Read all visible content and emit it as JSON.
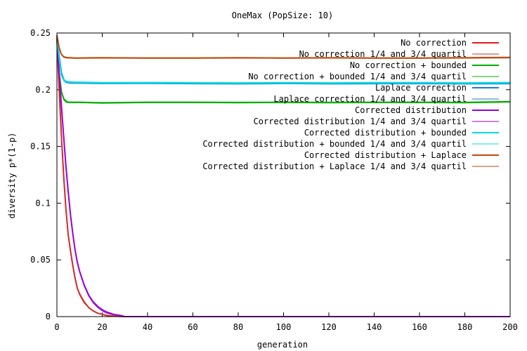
{
  "chart_data": {
    "type": "line",
    "title": "OneMax (PopSize: 10)",
    "xlabel": "generation",
    "ylabel": "diversity p*(1-p)",
    "xlim": [
      0,
      200
    ],
    "ylim": [
      0,
      0.25
    ],
    "xticks": [
      0,
      20,
      40,
      60,
      80,
      100,
      120,
      140,
      160,
      180,
      200
    ],
    "yticks": [
      0,
      0.05,
      0.1,
      0.15,
      0.2,
      0.25
    ],
    "grid": false,
    "legend_position": "top-right",
    "series": [
      {
        "name": "No correction",
        "color": "#e41a1c",
        "width": 2,
        "x": [
          0,
          1,
          2,
          3,
          4,
          5,
          6,
          7,
          8,
          9,
          10,
          12,
          14,
          16,
          18,
          20,
          22,
          25,
          28,
          30,
          40,
          60,
          100,
          150,
          200
        ],
        "y": [
          0.245,
          0.2,
          0.158,
          0.123,
          0.094,
          0.072,
          0.058,
          0.045,
          0.034,
          0.025,
          0.02,
          0.013,
          0.008,
          0.005,
          0.003,
          0.002,
          0.001,
          0.0005,
          0.0002,
          0,
          0,
          0,
          0,
          0,
          0
        ]
      },
      {
        "name": "No correction 1/4 and 3/4 quartil",
        "color": "#c0392b",
        "width": 1,
        "x": [
          0,
          1,
          2,
          3,
          4,
          5,
          6,
          7,
          8,
          9,
          10,
          12,
          14,
          16,
          18,
          20,
          22,
          25,
          28,
          30,
          40,
          60,
          100,
          150,
          200
        ],
        "y": [
          0.244,
          0.198,
          0.156,
          0.121,
          0.093,
          0.071,
          0.057,
          0.044,
          0.033,
          0.025,
          0.019,
          0.012,
          0.008,
          0.005,
          0.003,
          0.002,
          0.001,
          0.0005,
          0.0002,
          0,
          0,
          0,
          0,
          0,
          0
        ]
      },
      {
        "name": "No correction + bounded",
        "color": "#00b000",
        "width": 2,
        "x": [
          0,
          1,
          2,
          3,
          4,
          5,
          6,
          8,
          10,
          20,
          40,
          60,
          80,
          100,
          120,
          140,
          160,
          180,
          200
        ],
        "y": [
          0.245,
          0.215,
          0.198,
          0.192,
          0.19,
          0.189,
          0.189,
          0.189,
          0.189,
          0.1885,
          0.189,
          0.189,
          0.1888,
          0.189,
          0.1888,
          0.189,
          0.189,
          0.1888,
          0.1895
        ]
      },
      {
        "name": "No correction + bounded 1/4 and 3/4 quartil",
        "color": "#00b000",
        "width": 1,
        "x": [
          0,
          1,
          2,
          3,
          4,
          5,
          6,
          8,
          10,
          20,
          40,
          60,
          80,
          100,
          120,
          140,
          160,
          180,
          200
        ],
        "y": [
          0.244,
          0.213,
          0.197,
          0.191,
          0.189,
          0.1885,
          0.1885,
          0.1885,
          0.1885,
          0.188,
          0.1885,
          0.1885,
          0.1883,
          0.1885,
          0.1883,
          0.1885,
          0.1885,
          0.1883,
          0.189
        ]
      },
      {
        "name": "Laplace correction",
        "color": "#1f78d4",
        "width": 2,
        "x": [
          0,
          1,
          2,
          3,
          4,
          5,
          6,
          8,
          10,
          20,
          40,
          60,
          80,
          100,
          120,
          140,
          160,
          180,
          200
        ],
        "y": [
          0.247,
          0.23,
          0.215,
          0.209,
          0.207,
          0.2065,
          0.2063,
          0.2062,
          0.2062,
          0.2058,
          0.206,
          0.2058,
          0.2055,
          0.2058,
          0.2056,
          0.2058,
          0.2058,
          0.2055,
          0.2058
        ]
      },
      {
        "name": "Laplace correction 1/4 and 3/4 quartil",
        "color": "#1f78d4",
        "width": 1,
        "x": [
          0,
          1,
          2,
          3,
          4,
          5,
          6,
          8,
          10,
          20,
          40,
          60,
          80,
          100,
          120,
          140,
          160,
          180,
          200
        ],
        "y": [
          0.246,
          0.229,
          0.214,
          0.208,
          0.2062,
          0.2058,
          0.2056,
          0.2055,
          0.2055,
          0.2052,
          0.2053,
          0.2051,
          0.2049,
          0.2052,
          0.2049,
          0.2051,
          0.2051,
          0.2049,
          0.2051
        ]
      },
      {
        "name": "Corrected distribution",
        "color": "#9b00d3",
        "width": 2,
        "x": [
          0,
          1,
          2,
          3,
          4,
          5,
          6,
          7,
          8,
          9,
          10,
          12,
          14,
          16,
          18,
          20,
          22,
          25,
          28,
          30,
          40,
          60,
          100,
          150,
          200
        ],
        "y": [
          0.246,
          0.215,
          0.185,
          0.158,
          0.132,
          0.11,
          0.09,
          0.073,
          0.059,
          0.048,
          0.04,
          0.028,
          0.019,
          0.013,
          0.009,
          0.006,
          0.004,
          0.002,
          0.001,
          0,
          0,
          0,
          0,
          0,
          0
        ]
      },
      {
        "name": "Corrected distribution 1/4 and 3/4 quartil",
        "color": "#9b00d3",
        "width": 1,
        "x": [
          0,
          1,
          2,
          3,
          4,
          5,
          6,
          7,
          8,
          9,
          10,
          12,
          14,
          16,
          18,
          20,
          22,
          25,
          28,
          30,
          40,
          60,
          100,
          150,
          200
        ],
        "y": [
          0.245,
          0.213,
          0.183,
          0.156,
          0.13,
          0.108,
          0.089,
          0.072,
          0.058,
          0.047,
          0.039,
          0.027,
          0.018,
          0.012,
          0.008,
          0.005,
          0.003,
          0.0015,
          0.0008,
          0,
          0,
          0,
          0,
          0,
          0
        ]
      },
      {
        "name": "Corrected distribution + bounded",
        "color": "#00d8e8",
        "width": 2,
        "x": [
          0,
          1,
          2,
          3,
          4,
          5,
          6,
          8,
          10,
          20,
          40,
          60,
          80,
          100,
          120,
          140,
          160,
          180,
          200
        ],
        "y": [
          0.247,
          0.228,
          0.213,
          0.2085,
          0.2075,
          0.207,
          0.2068,
          0.2066,
          0.2066,
          0.2062,
          0.2063,
          0.2061,
          0.206,
          0.2062,
          0.206,
          0.2062,
          0.2062,
          0.206,
          0.2063
        ]
      },
      {
        "name": "Corrected distribution + bounded 1/4 and 3/4 quartil",
        "color": "#00d8e8",
        "width": 1,
        "x": [
          0,
          1,
          2,
          3,
          4,
          5,
          6,
          8,
          10,
          20,
          40,
          60,
          80,
          100,
          120,
          140,
          160,
          180,
          200
        ],
        "y": [
          0.2465,
          0.227,
          0.2122,
          0.2078,
          0.2068,
          0.2064,
          0.2062,
          0.206,
          0.206,
          0.2056,
          0.2057,
          0.2055,
          0.2054,
          0.2056,
          0.2054,
          0.2056,
          0.2056,
          0.2054,
          0.2057
        ]
      },
      {
        "name": "Corrected distribution + Laplace",
        "color": "#c04a0a",
        "width": 2,
        "x": [
          0,
          1,
          2,
          3,
          4,
          5,
          6,
          8,
          10,
          20,
          40,
          60,
          80,
          100,
          120,
          140,
          160,
          180,
          200
        ],
        "y": [
          0.248,
          0.237,
          0.231,
          0.229,
          0.2285,
          0.2283,
          0.2282,
          0.228,
          0.228,
          0.2282,
          0.228,
          0.228,
          0.2282,
          0.228,
          0.2282,
          0.228,
          0.228,
          0.2282,
          0.2285
        ]
      },
      {
        "name": "Corrected distribution + Laplace 1/4 and 3/4 quartil",
        "color": "#c04a0a",
        "width": 1,
        "x": [
          0,
          1,
          2,
          3,
          4,
          5,
          6,
          8,
          10,
          20,
          40,
          60,
          80,
          100,
          120,
          140,
          160,
          180,
          200
        ],
        "y": [
          0.2475,
          0.2365,
          0.2305,
          0.2285,
          0.228,
          0.2278,
          0.2277,
          0.2276,
          0.2276,
          0.2277,
          0.2276,
          0.2276,
          0.2277,
          0.2276,
          0.2277,
          0.2276,
          0.2276,
          0.2277,
          0.228
        ]
      }
    ]
  }
}
